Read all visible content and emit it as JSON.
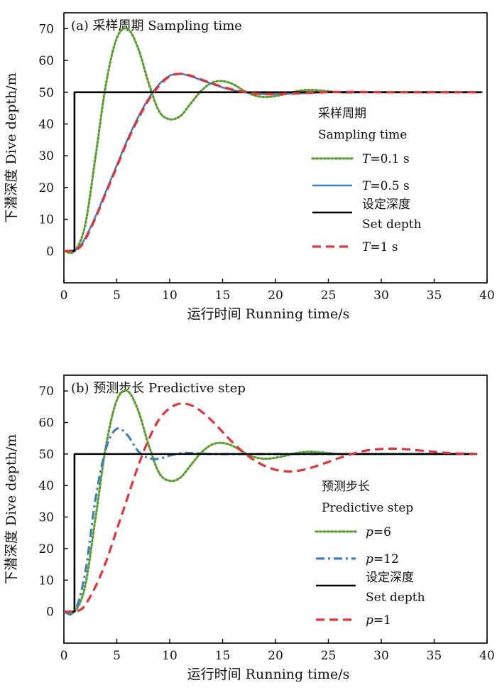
{
  "chart_data": [
    {
      "type": "line",
      "title": "(a) 采样周期 Sampling time",
      "xlabel": "运行时间 Running time/s",
      "ylabel": "下潜深度 Dive depth/m",
      "xlim": [
        0,
        40
      ],
      "ylim": [
        -10,
        75
      ],
      "xticks": [
        "0",
        "5",
        "10",
        "15",
        "20",
        "25",
        "30",
        "35",
        "40"
      ],
      "yticks": [
        "0",
        "10",
        "20",
        "30",
        "40",
        "50",
        "60",
        "70"
      ],
      "legend": {
        "title": [
          "采样周期",
          "Sampling time"
        ],
        "placement": "right",
        "entries": [
          {
            "series": 0,
            "lines": [
              "T=0.1 s"
            ]
          },
          {
            "series": 1,
            "lines": [
              "T=0.5 s"
            ]
          },
          {
            "series": 2,
            "lines": [
              "设定深度",
              "Set depth"
            ]
          },
          {
            "series": 3,
            "lines": [
              "T=1 s"
            ]
          }
        ]
      },
      "series": [
        {
          "name": "T=0.1 s",
          "color": "#5aa02c",
          "dash": "dot",
          "x": [
            0,
            1,
            2,
            3,
            4,
            5,
            6,
            7,
            8,
            9,
            10,
            11,
            12,
            13,
            14,
            15,
            16,
            17,
            18,
            19,
            20,
            21,
            22,
            23,
            24,
            25,
            26,
            27,
            28,
            30,
            35,
            39.5
          ],
          "y": [
            0,
            0,
            8,
            30,
            53,
            67,
            70,
            64,
            53,
            44,
            41.5,
            42.5,
            46.5,
            50.5,
            53,
            53.5,
            52.5,
            50.5,
            49,
            48.5,
            48.8,
            49.5,
            50.3,
            50.7,
            50.6,
            50.3,
            50,
            49.9,
            50,
            50,
            50,
            50
          ]
        },
        {
          "name": "T=0.5 s",
          "color": "#3e7fc4",
          "dash": "solid",
          "x": [
            0,
            1,
            1.5,
            2,
            3,
            4,
            5,
            6,
            7,
            8,
            9,
            10,
            11,
            12,
            13,
            14,
            15,
            16,
            17,
            18,
            19,
            20,
            22,
            24,
            26,
            28,
            30,
            35,
            39.5
          ],
          "y": [
            0,
            0.3,
            1.5,
            4,
            11,
            19,
            27,
            35,
            42,
            48,
            52.5,
            55.2,
            55.8,
            55,
            53.8,
            52.6,
            51.5,
            50.6,
            50,
            49.6,
            49.4,
            49.4,
            49.6,
            49.9,
            50.1,
            50.1,
            50,
            50,
            50
          ]
        },
        {
          "name": "设定深度 Set depth",
          "color": "#000000",
          "dash": "solid",
          "x": [
            0,
            1,
            1,
            39.5
          ],
          "y": [
            0,
            0,
            50,
            50
          ]
        },
        {
          "name": "T=1 s",
          "color": "#e8313a",
          "dash": "dash",
          "x": [
            0,
            1,
            1.5,
            2,
            3,
            4,
            5,
            6,
            7,
            8,
            9,
            10,
            11,
            12,
            13,
            14,
            15,
            16,
            17,
            18,
            19,
            20,
            22,
            24,
            26,
            28,
            30,
            35,
            39.5
          ],
          "y": [
            0,
            0.2,
            1.2,
            3.5,
            10.5,
            18.5,
            26.5,
            34.5,
            41.5,
            47.5,
            52,
            55,
            55.8,
            55.2,
            54,
            52.8,
            51.7,
            50.8,
            50.1,
            49.6,
            49.4,
            49.4,
            49.6,
            49.9,
            50.1,
            50.1,
            50,
            50,
            50
          ]
        }
      ]
    },
    {
      "type": "line",
      "title": "(b) 预测步长 Predictive step",
      "xlabel": "运行时间 Running time/s",
      "ylabel": "下潜深度 Dive depth/m",
      "xlim": [
        0,
        40
      ],
      "ylim": [
        -10,
        75
      ],
      "xticks": [
        "0",
        "5",
        "10",
        "15",
        "20",
        "25",
        "30",
        "35",
        "40"
      ],
      "yticks": [
        "0",
        "10",
        "20",
        "30",
        "40",
        "50",
        "60",
        "70"
      ],
      "legend": {
        "title": [
          "预测步长",
          "Predictive step"
        ],
        "placement": "right",
        "entries": [
          {
            "series": 0,
            "lines": [
              "p=6"
            ]
          },
          {
            "series": 1,
            "lines": [
              "p=12"
            ]
          },
          {
            "series": 2,
            "lines": [
              "设定深度",
              "Set depth"
            ]
          },
          {
            "series": 3,
            "lines": [
              "p=1"
            ]
          }
        ]
      },
      "series": [
        {
          "name": "p=6",
          "color": "#5aa02c",
          "dash": "dot",
          "x": [
            0,
            1,
            2,
            3,
            4,
            5,
            6,
            7,
            8,
            9,
            10,
            11,
            12,
            13,
            14,
            15,
            16,
            17,
            18,
            19,
            20,
            21,
            22,
            23,
            24,
            25,
            26,
            28,
            30,
            35,
            39
          ],
          "y": [
            0,
            0,
            8,
            30,
            53,
            67,
            70,
            64,
            53,
            44,
            41.5,
            42.5,
            46.5,
            50.5,
            53,
            53.5,
            52.5,
            50.5,
            49,
            48.5,
            48.8,
            49.5,
            50.3,
            50.7,
            50.6,
            50.3,
            50,
            50,
            50,
            50,
            50
          ]
        },
        {
          "name": "p=12",
          "color": "#3e7fc4",
          "dash": "dashdot",
          "x": [
            0,
            1,
            2,
            3,
            4,
            5,
            6,
            7,
            8,
            9,
            10,
            11,
            12,
            14,
            16,
            20,
            25,
            30,
            35,
            39
          ],
          "y": [
            0,
            0,
            12,
            36,
            52,
            58,
            56,
            51,
            48.7,
            48.5,
            49.5,
            50.2,
            50.3,
            50,
            50,
            50,
            50,
            50,
            50,
            50
          ]
        },
        {
          "name": "设定深度 Set depth",
          "color": "#000000",
          "dash": "solid",
          "x": [
            0,
            1,
            1,
            39
          ],
          "y": [
            0,
            0,
            50,
            50
          ]
        },
        {
          "name": "p=1",
          "color": "#e8313a",
          "dash": "dash",
          "x": [
            0,
            1,
            1.5,
            2,
            3,
            4,
            5,
            6,
            7,
            8,
            9,
            10,
            11,
            12,
            13,
            14,
            15,
            16,
            17,
            18,
            19,
            20,
            21,
            22,
            23,
            24,
            25,
            26,
            27,
            28,
            29,
            30,
            31,
            32,
            33,
            34,
            35,
            36,
            37,
            38,
            39
          ],
          "y": [
            0,
            0,
            0.5,
            2,
            8,
            16,
            26,
            36,
            46,
            54.5,
            61,
            64.5,
            66,
            65.5,
            63.5,
            60.5,
            57,
            53.5,
            50.5,
            48,
            46.2,
            45,
            44.5,
            44.6,
            45.3,
            46.3,
            47.5,
            48.7,
            49.8,
            50.7,
            51.3,
            51.6,
            51.7,
            51.6,
            51.3,
            51,
            50.7,
            50.4,
            50.2,
            50.1,
            50
          ]
        }
      ]
    }
  ]
}
